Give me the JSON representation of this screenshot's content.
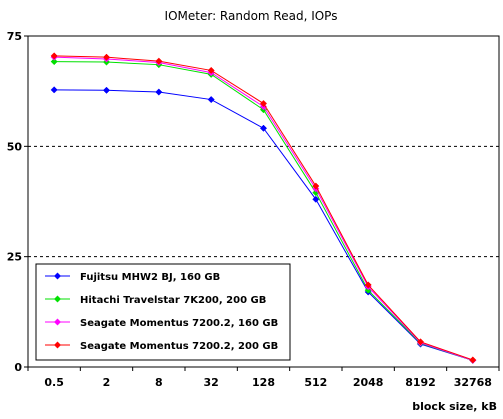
{
  "chart_data": {
    "type": "line",
    "title": "IOMeter: Random Read, IOPs",
    "xlabel": "block size, kB",
    "ylabel": "",
    "categories": [
      "0.5",
      "2",
      "8",
      "32",
      "128",
      "512",
      "2048",
      "8192",
      "32768"
    ],
    "y_ticks": [
      "0",
      "25",
      "50",
      "75"
    ],
    "ylim": [
      0,
      75
    ],
    "grid": "horizontal dashed",
    "legend_position": "bottom-left",
    "series": [
      {
        "name": "Fujitsu MHW2 BJ, 160 GB",
        "color": "#0000ff",
        "values": [
          62.8,
          62.7,
          62.3,
          60.6,
          54.1,
          38.0,
          17.0,
          5.2,
          1.5
        ]
      },
      {
        "name": "Hitachi Travelstar 7K200, 200 GB",
        "color": "#00e000",
        "values": [
          69.2,
          69.1,
          68.5,
          66.3,
          58.3,
          39.5,
          17.4,
          5.4,
          1.5
        ]
      },
      {
        "name": "Seagate Momentus 7200.2, 160 GB",
        "color": "#ff00ff",
        "values": [
          70.2,
          69.8,
          69.0,
          66.7,
          59.0,
          40.4,
          18.2,
          5.5,
          1.5
        ]
      },
      {
        "name": "Seagate Momentus 7200.2, 200 GB",
        "color": "#ff0000",
        "values": [
          70.5,
          70.2,
          69.3,
          67.2,
          59.7,
          41.0,
          18.6,
          5.7,
          1.6
        ]
      }
    ]
  }
}
